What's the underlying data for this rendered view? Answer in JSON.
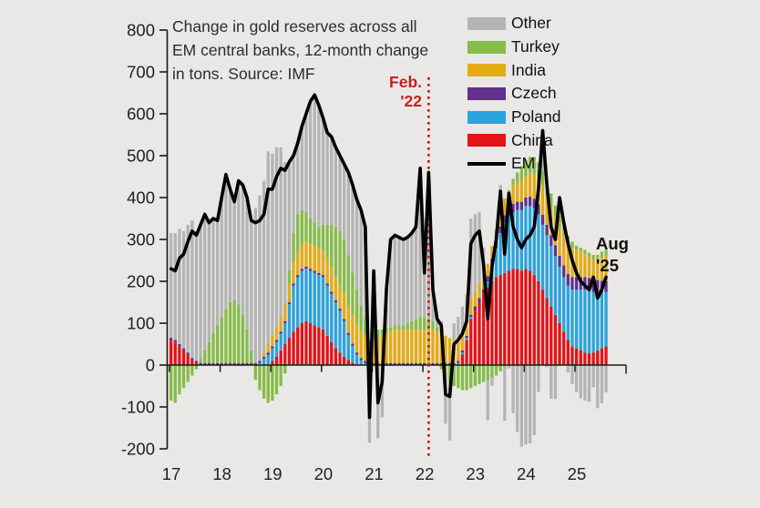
{
  "title": {
    "lines": [
      "Change in gold reserves across all",
      "EM central banks, 12-month change",
      "in tons. Source: IMF"
    ]
  },
  "legend": {
    "items": [
      {
        "label": "Other",
        "color": "#b4b4b4",
        "type": "bar"
      },
      {
        "label": "Turkey",
        "color": "#86bc48",
        "type": "bar"
      },
      {
        "label": "India",
        "color": "#e3ac15",
        "type": "bar"
      },
      {
        "label": "Czech",
        "color": "#62308f",
        "type": "bar"
      },
      {
        "label": "Poland",
        "color": "#2aa4dc",
        "type": "bar"
      },
      {
        "label": "China",
        "color": "#e41317",
        "type": "bar"
      },
      {
        "label": "EM",
        "color": "#000000",
        "type": "line"
      }
    ]
  },
  "annotations": {
    "feb": {
      "line1": "Feb.",
      "line2": "'22",
      "color": "#c5201e",
      "month": "2022-02"
    },
    "aug": {
      "line1": "Aug",
      "line2": "'25"
    }
  },
  "axes": {
    "y": {
      "min": -200,
      "max": 800,
      "step": 100,
      "tick_labels": [
        "800",
        "700",
        "600",
        "500",
        "400",
        "300",
        "200",
        "100",
        "0",
        "-100",
        "-200"
      ]
    },
    "x": {
      "tick_labels": [
        "17",
        "18",
        "19",
        "20",
        "21",
        "22",
        "23",
        "24",
        "25"
      ]
    }
  },
  "colors": {
    "background": "#e9e8e6",
    "axis": "#1a1a1a",
    "text": "#1f1f1f"
  },
  "chart_data": {
    "type": "stacked-bar-with-line",
    "title": "Change in gold reserves across all EM central banks, 12-month change in tons. Source: IMF",
    "x": {
      "start": "2017-01",
      "end": "2025-08",
      "frequency": "monthly",
      "n_points": 104
    },
    "ylim": [
      -200,
      800
    ],
    "grid": false,
    "legend_position": "top-right",
    "stack_order": [
      "China",
      "Poland",
      "Czech",
      "India",
      "Turkey",
      "Other"
    ],
    "line_series": "EM",
    "vline_month_index": 61,
    "series": [
      {
        "name": "China",
        "values": [
          60,
          55,
          45,
          35,
          25,
          12,
          5,
          0,
          0,
          0,
          0,
          0,
          0,
          0,
          0,
          0,
          0,
          0,
          0,
          0,
          0,
          0,
          0,
          0,
          10,
          20,
          35,
          50,
          65,
          80,
          90,
          100,
          105,
          100,
          95,
          90,
          85,
          70,
          55,
          40,
          30,
          20,
          12,
          6,
          0,
          0,
          0,
          0,
          0,
          0,
          0,
          0,
          0,
          0,
          0,
          0,
          0,
          0,
          0,
          0,
          0,
          0,
          0,
          0,
          0,
          0,
          0,
          0,
          0,
          25,
          60,
          110,
          130,
          150,
          170,
          185,
          200,
          210,
          215,
          220,
          225,
          230,
          230,
          225,
          230,
          225,
          215,
          200,
          180,
          160,
          140,
          120,
          100,
          80,
          60,
          45,
          40,
          35,
          30,
          28,
          30,
          35,
          40,
          45
        ]
      },
      {
        "name": "Poland",
        "values": [
          0,
          0,
          0,
          0,
          0,
          0,
          0,
          0,
          0,
          0,
          0,
          0,
          0,
          0,
          0,
          0,
          0,
          0,
          0,
          0,
          0,
          5,
          15,
          25,
          30,
          35,
          40,
          50,
          80,
          110,
          120,
          125,
          125,
          125,
          125,
          125,
          125,
          120,
          115,
          110,
          100,
          85,
          60,
          40,
          25,
          12,
          5,
          0,
          0,
          0,
          0,
          0,
          0,
          0,
          0,
          0,
          0,
          0,
          0,
          0,
          0,
          0,
          0,
          0,
          0,
          0,
          0,
          0,
          5,
          5,
          5,
          5,
          0,
          0,
          0,
          15,
          40,
          70,
          100,
          120,
          130,
          135,
          140,
          145,
          150,
          155,
          160,
          160,
          155,
          150,
          145,
          140,
          135,
          130,
          130,
          135,
          140,
          145,
          150,
          150,
          145,
          140,
          135,
          130
        ]
      },
      {
        "name": "Czech",
        "values": [
          5,
          5,
          5,
          5,
          5,
          5,
          5,
          5,
          5,
          5,
          5,
          5,
          5,
          5,
          5,
          5,
          5,
          5,
          5,
          5,
          5,
          5,
          5,
          5,
          5,
          5,
          5,
          5,
          5,
          5,
          5,
          5,
          5,
          5,
          5,
          5,
          5,
          5,
          5,
          5,
          5,
          5,
          5,
          5,
          5,
          5,
          5,
          5,
          5,
          5,
          5,
          5,
          5,
          5,
          5,
          5,
          5,
          5,
          5,
          5,
          5,
          5,
          5,
          5,
          5,
          5,
          5,
          5,
          5,
          5,
          5,
          5,
          10,
          10,
          12,
          12,
          14,
          15,
          16,
          18,
          18,
          20,
          20,
          20,
          20,
          22,
          22,
          24,
          24,
          25,
          25,
          26,
          26,
          28,
          28,
          30,
          30,
          30,
          30,
          30,
          28,
          28,
          26,
          25
        ]
      },
      {
        "name": "India",
        "values": [
          0,
          0,
          0,
          0,
          0,
          0,
          0,
          0,
          0,
          0,
          0,
          0,
          0,
          0,
          0,
          0,
          0,
          0,
          0,
          0,
          0,
          0,
          10,
          20,
          25,
          30,
          35,
          40,
          45,
          50,
          55,
          60,
          60,
          60,
          60,
          60,
          60,
          60,
          60,
          55,
          55,
          60,
          65,
          70,
          70,
          65,
          60,
          40,
          55,
          60,
          65,
          70,
          75,
          80,
          80,
          80,
          80,
          80,
          80,
          80,
          80,
          80,
          80,
          75,
          70,
          65,
          60,
          55,
          50,
          45,
          40,
          40,
          35,
          35,
          30,
          30,
          30,
          30,
          35,
          40,
          40,
          45,
          45,
          50,
          50,
          55,
          60,
          65,
          70,
          70,
          70,
          70,
          70,
          70,
          70,
          70,
          65,
          60,
          55,
          50,
          50,
          50,
          55,
          60
        ]
      },
      {
        "name": "Turkey",
        "values": [
          -85,
          -90,
          -70,
          -55,
          -40,
          -25,
          -10,
          10,
          30,
          50,
          70,
          90,
          110,
          130,
          145,
          150,
          140,
          115,
          80,
          30,
          -35,
          -60,
          -80,
          -90,
          -85,
          -70,
          -50,
          -20,
          30,
          70,
          90,
          80,
          70,
          60,
          55,
          50,
          60,
          80,
          100,
          120,
          130,
          130,
          120,
          100,
          80,
          60,
          45,
          15,
          25,
          20,
          15,
          15,
          10,
          10,
          10,
          10,
          15,
          20,
          25,
          30,
          30,
          25,
          20,
          10,
          -10,
          -25,
          -40,
          -50,
          -55,
          -60,
          -60,
          -55,
          -50,
          -45,
          -40,
          -35,
          -30,
          -25,
          -15,
          -5,
          5,
          15,
          25,
          35,
          40,
          40,
          40,
          35,
          35,
          30,
          30,
          25,
          25,
          20,
          20,
          15,
          10,
          10,
          10,
          10,
          10,
          10,
          15,
          15
        ]
      },
      {
        "name": "Other",
        "values": [
          250,
          255,
          275,
          280,
          305,
          328,
          310,
          320,
          325,
          285,
          275,
          250,
          285,
          320,
          270,
          235,
          295,
          310,
          315,
          310,
          370,
          395,
          410,
          460,
          435,
          430,
          405,
          340,
          260,
          185,
          170,
          200,
          235,
          280,
          305,
          290,
          255,
          220,
          210,
          190,
          180,
          180,
          198,
          209,
          215,
          228,
          215,
          -185,
          140,
          -175,
          -125,
          90,
          210,
          215,
          210,
          205,
          205,
          210,
          220,
          355,
          105,
          350,
          75,
          20,
          30,
          -115,
          -140,
          40,
          55,
          60,
          60,
          190,
          185,
          170,
          68,
          -97,
          -19,
          0,
          64,
          -128,
          -8,
          -115,
          -160,
          -195,
          -190,
          -187,
          -167,
          -64,
          96,
          -5,
          -80,
          -81,
          44,
          12,
          -18,
          -45,
          -65,
          -80,
          -85,
          -88,
          -53,
          -103,
          -91,
          -65
        ]
      },
      {
        "name": "EM",
        "values": [
          230,
          225,
          255,
          265,
          295,
          320,
          310,
          335,
          360,
          340,
          350,
          345,
          400,
          455,
          420,
          390,
          440,
          430,
          400,
          345,
          340,
          345,
          360,
          420,
          420,
          450,
          470,
          465,
          485,
          500,
          530,
          570,
          600,
          630,
          645,
          620,
          590,
          555,
          545,
          520,
          500,
          480,
          460,
          430,
          395,
          370,
          330,
          -125,
          225,
          -90,
          -40,
          180,
          300,
          310,
          305,
          300,
          305,
          315,
          330,
          470,
          220,
          460,
          180,
          110,
          95,
          -70,
          -75,
          50,
          60,
          75,
          105,
          290,
          310,
          320,
          240,
          110,
          235,
          300,
          415,
          265,
          410,
          330,
          300,
          280,
          300,
          310,
          330,
          420,
          560,
          430,
          330,
          300,
          400,
          340,
          290,
          250,
          220,
          200,
          190,
          180,
          210,
          160,
          180,
          210
        ]
      }
    ]
  }
}
